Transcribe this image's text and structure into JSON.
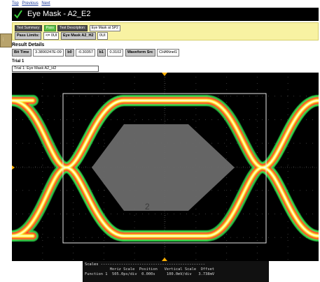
{
  "nav": {
    "top": "Top",
    "previous": "Previous",
    "next": "Next"
  },
  "header": {
    "title": "Eye Mask - A2_E2"
  },
  "summary": {
    "test_summary_label": "Test Summary:",
    "result": "Pass",
    "test_description_label": "Test Description:",
    "test_description": "Eye Mask at SP2",
    "pass_limits_label": "Pass Limits:",
    "limit_value": "<= 0UI",
    "eye_mask_label": "Eye Mask A2_H2",
    "eye_mask_value": "0UI"
  },
  "result_details": {
    "heading": "Result Details",
    "params": [
      {
        "label": "Bit Time",
        "value": "3.3890247E-09"
      },
      {
        "label": "b0",
        "value": "-0.30357"
      },
      {
        "label": "b1",
        "value": "0.3102"
      },
      {
        "label": "Waveform Src",
        "value": "CHANnel1"
      }
    ]
  },
  "trial": {
    "heading": "Trial 1",
    "caption": "Trial 1: Eye Mask A2_H2"
  },
  "scope": {
    "mask_label": "2",
    "colors": {
      "outer": "#2fd84a",
      "mid1": "#ff8a1c",
      "mid2": "#ff2a2a",
      "core": "#ffff38",
      "mask": "#6a6a6a",
      "grid": "#3a3a3a",
      "marker": "#ffb000"
    }
  },
  "status": {
    "scales_header": "Scales ----------------------------------------------",
    "col_headers": {
      "horiz_scale": "Horiz Scale",
      "position": "Position",
      "vertical_scale": "Vertical Scale",
      "offset": "Offset"
    },
    "row": {
      "name": "Function 1",
      "horiz_scale": "505.0ps/div",
      "position": "0.000s",
      "vertical_scale": "100.0mV/div",
      "offset": "3.738mV"
    }
  }
}
